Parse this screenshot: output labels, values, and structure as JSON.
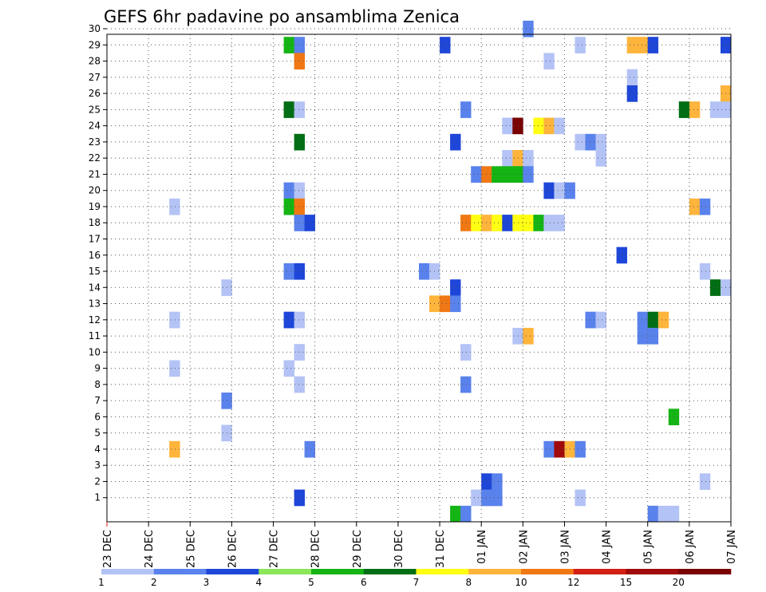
{
  "chart_data": {
    "type": "heatmap",
    "title": "GEFS 6hr padavine po ansamblima Zenica",
    "y_ticks": [
      "1",
      "2",
      "3",
      "4",
      "5",
      "6",
      "7",
      "8",
      "9",
      "10",
      "11",
      "12",
      "13",
      "14",
      "15",
      "16",
      "17",
      "18",
      "19",
      "20",
      "21",
      "22",
      "23",
      "24",
      "25",
      "26",
      "27",
      "28",
      "29",
      "30"
    ],
    "x_ticks": [
      "23 DEC",
      "24 DEC",
      "25 DEC",
      "26 DEC",
      "27 DEC",
      "28 DEC",
      "29 DEC",
      "30 DEC",
      "31 DEC",
      "01 JAN",
      "02 JAN",
      "03 JAN",
      "04 JAN",
      "05 JAN",
      "06 JAN",
      "07 JAN"
    ],
    "x_step_hours": 6,
    "grid": true,
    "legend_position": "bottom",
    "legend": {
      "labels": [
        "1",
        "2",
        "3",
        "4",
        "5",
        "6",
        "7",
        "8",
        "10",
        "12",
        "15",
        "20"
      ],
      "colors": [
        "#b4c3f5",
        "#5a82ec",
        "#1e46d8",
        "#8ce65a",
        "#14b414",
        "#006e14",
        "#ffff14",
        "#ffb43c",
        "#f07814",
        "#d21e14",
        "#a00a0a",
        "#780000"
      ]
    },
    "cells": [
      {
        "member": 30,
        "step": 40,
        "value": 2
      },
      {
        "member": 29,
        "step": 17,
        "value": 5
      },
      {
        "member": 29,
        "step": 18,
        "value": 2
      },
      {
        "member": 29,
        "step": 32,
        "value": 3
      },
      {
        "member": 29,
        "step": 45,
        "value": 1
      },
      {
        "member": 29,
        "step": 50,
        "value": 8
      },
      {
        "member": 29,
        "step": 51,
        "value": 8
      },
      {
        "member": 29,
        "step": 52,
        "value": 3
      },
      {
        "member": 29,
        "step": 59,
        "value": 3
      },
      {
        "member": 28,
        "step": 18,
        "value": 10
      },
      {
        "member": 28,
        "step": 42,
        "value": 1
      },
      {
        "member": 27,
        "step": 50,
        "value": 1
      },
      {
        "member": 26,
        "step": 50,
        "value": 3
      },
      {
        "member": 26,
        "step": 59,
        "value": 9
      },
      {
        "member": 25,
        "step": 17,
        "value": 6
      },
      {
        "member": 25,
        "step": 18,
        "value": 1
      },
      {
        "member": 25,
        "step": 34,
        "value": 2
      },
      {
        "member": 25,
        "step": 55,
        "value": 6
      },
      {
        "member": 25,
        "step": 56,
        "value": 8
      },
      {
        "member": 25,
        "step": 58,
        "value": 1
      },
      {
        "member": 25,
        "step": 59,
        "value": 1
      },
      {
        "member": 24,
        "step": 38,
        "value": 1
      },
      {
        "member": 24,
        "step": 39,
        "value": 21
      },
      {
        "member": 24,
        "step": 41,
        "value": 7
      },
      {
        "member": 24,
        "step": 42,
        "value": 9
      },
      {
        "member": 24,
        "step": 43,
        "value": 1
      },
      {
        "member": 23,
        "step": 18,
        "value": 6
      },
      {
        "member": 23,
        "step": 33,
        "value": 3
      },
      {
        "member": 23,
        "step": 45,
        "value": 1
      },
      {
        "member": 23,
        "step": 46,
        "value": 2
      },
      {
        "member": 23,
        "step": 47,
        "value": 1
      },
      {
        "member": 22,
        "step": 38,
        "value": 1
      },
      {
        "member": 22,
        "step": 39,
        "value": 8
      },
      {
        "member": 22,
        "step": 40,
        "value": 1
      },
      {
        "member": 22,
        "step": 47,
        "value": 1
      },
      {
        "member": 21,
        "step": 35,
        "value": 2
      },
      {
        "member": 21,
        "step": 36,
        "value": 10
      },
      {
        "member": 21,
        "step": 37,
        "value": 5
      },
      {
        "member": 21,
        "step": 38,
        "value": 5
      },
      {
        "member": 21,
        "step": 39,
        "value": 5
      },
      {
        "member": 21,
        "step": 40,
        "value": 2
      },
      {
        "member": 20,
        "step": 17,
        "value": 2
      },
      {
        "member": 20,
        "step": 18,
        "value": 1
      },
      {
        "member": 20,
        "step": 42,
        "value": 3
      },
      {
        "member": 20,
        "step": 43,
        "value": 1
      },
      {
        "member": 20,
        "step": 44,
        "value": 2
      },
      {
        "member": 19,
        "step": 6,
        "value": 1
      },
      {
        "member": 19,
        "step": 17,
        "value": 5
      },
      {
        "member": 19,
        "step": 18,
        "value": 10
      },
      {
        "member": 19,
        "step": 56,
        "value": 9
      },
      {
        "member": 19,
        "step": 57,
        "value": 2
      },
      {
        "member": 18,
        "step": 18,
        "value": 2
      },
      {
        "member": 18,
        "step": 19,
        "value": 3
      },
      {
        "member": 18,
        "step": 34,
        "value": 10
      },
      {
        "member": 18,
        "step": 35,
        "value": 7
      },
      {
        "member": 18,
        "step": 36,
        "value": 8
      },
      {
        "member": 18,
        "step": 37,
        "value": 7
      },
      {
        "member": 18,
        "step": 38,
        "value": 3
      },
      {
        "member": 18,
        "step": 39,
        "value": 7
      },
      {
        "member": 18,
        "step": 40,
        "value": 7
      },
      {
        "member": 18,
        "step": 41,
        "value": 5
      },
      {
        "member": 18,
        "step": 42,
        "value": 1
      },
      {
        "member": 18,
        "step": 43,
        "value": 1
      },
      {
        "member": 16,
        "step": 49,
        "value": 3
      },
      {
        "member": 15,
        "step": 17,
        "value": 2
      },
      {
        "member": 15,
        "step": 18,
        "value": 3
      },
      {
        "member": 15,
        "step": 30,
        "value": 2
      },
      {
        "member": 15,
        "step": 31,
        "value": 1
      },
      {
        "member": 15,
        "step": 57,
        "value": 1
      },
      {
        "member": 14,
        "step": 11,
        "value": 1
      },
      {
        "member": 14,
        "step": 33,
        "value": 3
      },
      {
        "member": 14,
        "step": 58,
        "value": 6
      },
      {
        "member": 14,
        "step": 59,
        "value": 1
      },
      {
        "member": 13,
        "step": 31,
        "value": 8
      },
      {
        "member": 13,
        "step": 32,
        "value": 10
      },
      {
        "member": 13,
        "step": 33,
        "value": 2
      },
      {
        "member": 12,
        "step": 6,
        "value": 1
      },
      {
        "member": 12,
        "step": 17,
        "value": 3
      },
      {
        "member": 12,
        "step": 18,
        "value": 1
      },
      {
        "member": 12,
        "step": 46,
        "value": 2
      },
      {
        "member": 12,
        "step": 47,
        "value": 1
      },
      {
        "member": 12,
        "step": 51,
        "value": 2
      },
      {
        "member": 12,
        "step": 52,
        "value": 6
      },
      {
        "member": 12,
        "step": 53,
        "value": 8
      },
      {
        "member": 11,
        "step": 39,
        "value": 1
      },
      {
        "member": 11,
        "step": 40,
        "value": 9
      },
      {
        "member": 11,
        "step": 51,
        "value": 2
      },
      {
        "member": 11,
        "step": 52,
        "value": 2
      },
      {
        "member": 10,
        "step": 18,
        "value": 1
      },
      {
        "member": 10,
        "step": 34,
        "value": 1
      },
      {
        "member": 9,
        "step": 6,
        "value": 1
      },
      {
        "member": 9,
        "step": 17,
        "value": 1
      },
      {
        "member": 8,
        "step": 18,
        "value": 1
      },
      {
        "member": 8,
        "step": 34,
        "value": 2
      },
      {
        "member": 7,
        "step": 11,
        "value": 2
      },
      {
        "member": 6,
        "step": 54,
        "value": 5
      },
      {
        "member": 5,
        "step": 11,
        "value": 1
      },
      {
        "member": 4,
        "step": 6,
        "value": 8
      },
      {
        "member": 4,
        "step": 19,
        "value": 2
      },
      {
        "member": 4,
        "step": 42,
        "value": 2
      },
      {
        "member": 4,
        "step": 43,
        "value": 15
      },
      {
        "member": 4,
        "step": 44,
        "value": 9
      },
      {
        "member": 4,
        "step": 45,
        "value": 2
      },
      {
        "member": 2,
        "step": 36,
        "value": 3
      },
      {
        "member": 2,
        "step": 37,
        "value": 2
      },
      {
        "member": 2,
        "step": 57,
        "value": 1
      },
      {
        "member": 1,
        "step": 18,
        "value": 3
      },
      {
        "member": 1,
        "step": 35,
        "value": 1
      },
      {
        "member": 1,
        "step": 36,
        "value": 2
      },
      {
        "member": 1,
        "step": 37,
        "value": 2
      },
      {
        "member": 1,
        "step": 45,
        "value": 1
      },
      {
        "member": 0,
        "step": 33,
        "value": 5
      },
      {
        "member": 0,
        "step": 34,
        "value": 2
      },
      {
        "member": 0,
        "step": 52,
        "value": 2
      },
      {
        "member": 0,
        "step": 53,
        "value": 1
      },
      {
        "member": 0,
        "step": 54,
        "value": 1
      }
    ]
  }
}
